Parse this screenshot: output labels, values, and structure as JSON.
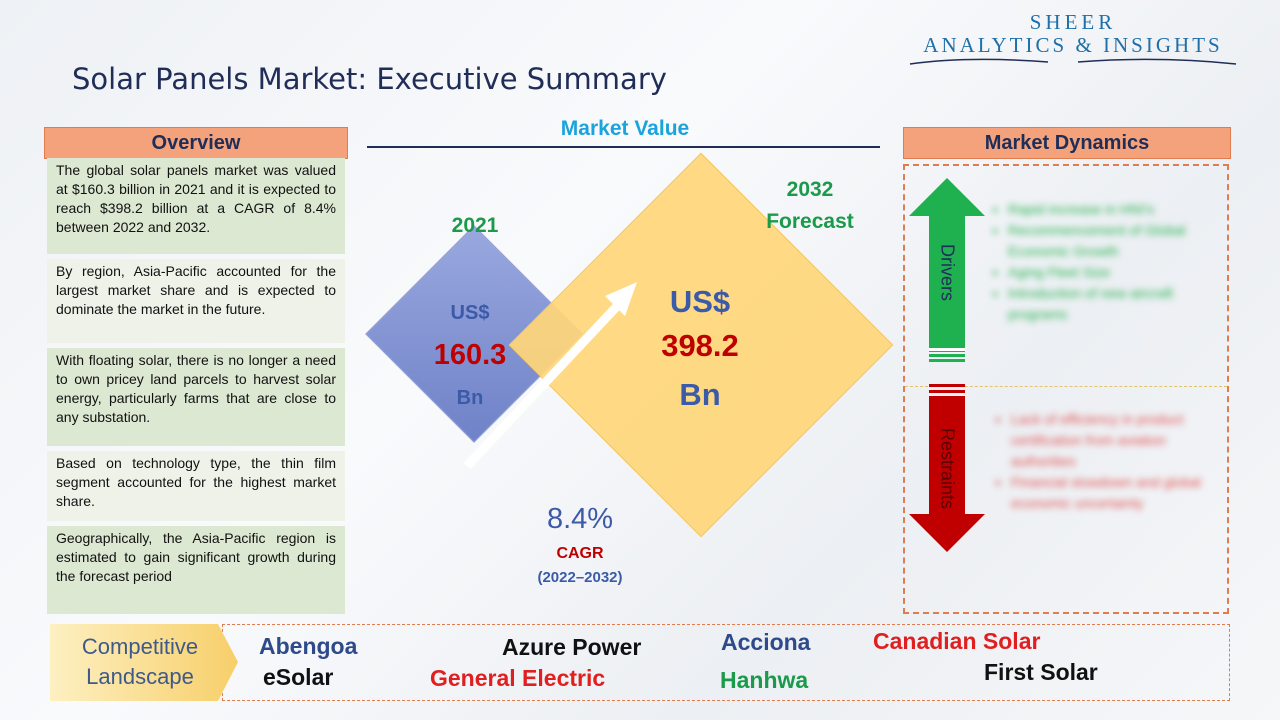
{
  "title": "Solar Panels Market: Executive Summary",
  "logo": {
    "line1": "SHEER",
    "line2": "ANALYTICS & INSIGHTS"
  },
  "overview": {
    "header": "Overview",
    "items": [
      "The global solar panels market was valued at $160.3 billion in 2021 and it is expected to reach $398.2 billion at a CAGR of 8.4% between 2022 and 2032.",
      "By region, Asia-Pacific accounted for the largest market share and is expected to dominate the market in the future.",
      "With floating solar, there is no longer a need to own pricey land parcels to harvest solar energy, particularly farms that are close to any substation.",
      "Based on technology type, the thin film segment accounted for the highest market share.",
      "Geographically, the Asia-Pacific region is estimated to gain significant growth during the forecast period"
    ]
  },
  "market_value": {
    "title": "Market Value",
    "year_2021": "2021",
    "currency_2021": "US$",
    "value_2021": "160.3",
    "unit_2021": "Bn",
    "year_2032_line1": "2032",
    "year_2032_line2": "Forecast",
    "currency_2032": "US$",
    "value_2032": "398.2",
    "unit_2032": "Bn",
    "cagr_value": "8.4%",
    "cagr_label": "CAGR",
    "cagr_period": "(2022–2032)"
  },
  "market_dynamics": {
    "header": "Market Dynamics",
    "drivers_label": "Drivers",
    "restraints_label": "Restraints",
    "drivers": [
      "Rapid increase in HNI's",
      "Recommencement of Global Economic Growth",
      "Aging Fleet Size",
      "Introduction of new aircraft programs"
    ],
    "restraints": [
      "Lack of efficiency in product certification from aviation authorities",
      "Financial slowdown and global economic uncertainty"
    ]
  },
  "competitive": {
    "label_line1": "Competitive",
    "label_line2": "Landscape",
    "companies": [
      {
        "name": "Abengoa",
        "color": "#2f4a8a"
      },
      {
        "name": "eSolar",
        "color": "#111111"
      },
      {
        "name": "Azure Power",
        "color": "#111111"
      },
      {
        "name": "General Electric",
        "color": "#e02020"
      },
      {
        "name": "Acciona",
        "color": "#2f4a8a"
      },
      {
        "name": "Hanhwa",
        "color": "#1a9a4a"
      },
      {
        "name": "Canadian Solar",
        "color": "#e02020"
      },
      {
        "name": "First Solar",
        "color": "#111111"
      }
    ]
  },
  "colors": {
    "accent_orange": "#f4a27c",
    "navy": "#1f2d57",
    "green": "#1a9a4a",
    "red": "#c00000",
    "blue": "#1aa3dc"
  }
}
